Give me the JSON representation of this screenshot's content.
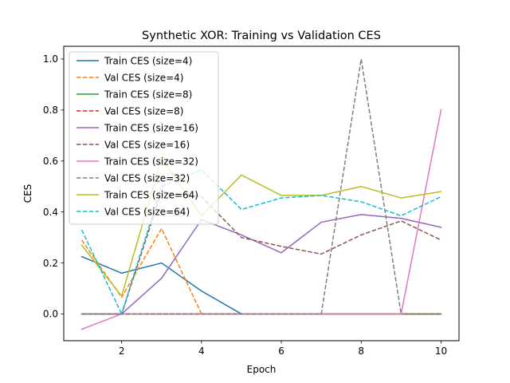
{
  "chart_data": {
    "type": "line",
    "title": "Synthetic XOR: Training vs Validation CES",
    "xlabel": "Epoch",
    "ylabel": "CES",
    "xlim": [
      0.55,
      10.45
    ],
    "ylim": [
      -0.105,
      1.05
    ],
    "xticks": [
      2,
      4,
      6,
      8,
      10
    ],
    "yticks": [
      0.0,
      0.2,
      0.4,
      0.6,
      0.8,
      1.0
    ],
    "ytick_labels": [
      "0.0",
      "0.2",
      "0.4",
      "0.6",
      "0.8",
      "1.0"
    ],
    "grid": false,
    "legend_position": "upper-left",
    "x": [
      1,
      2,
      3,
      4,
      5,
      6,
      7,
      8,
      9,
      10
    ],
    "series": [
      {
        "name": "Train CES (size=4)",
        "color": "#1f77b4",
        "dash": "solid",
        "values": [
          0.225,
          0.16,
          0.2,
          0.09,
          0.0,
          0.0,
          0.0,
          0.0,
          0.0,
          0.0
        ]
      },
      {
        "name": "Val CES (size=4)",
        "color": "#ff7f0e",
        "dash": "dashed",
        "values": [
          0.29,
          0.065,
          0.335,
          0.0,
          0.0,
          0.0,
          0.0,
          0.0,
          0.0,
          0.0
        ]
      },
      {
        "name": "Train CES (size=8)",
        "color": "#2ca02c",
        "dash": "solid",
        "values": [
          0.0,
          0.0,
          0.0,
          0.0,
          0.0,
          0.0,
          0.0,
          0.0,
          0.0,
          0.0
        ]
      },
      {
        "name": "Val CES (size=8)",
        "color": "#d62728",
        "dash": "dashed",
        "values": [
          0.0,
          0.0,
          0.0,
          0.0,
          0.0,
          0.0,
          0.0,
          0.0,
          0.0,
          0.0
        ]
      },
      {
        "name": "Train CES (size=16)",
        "color": "#9467bd",
        "dash": "solid",
        "values": [
          0.0,
          0.0,
          0.14,
          0.37,
          0.31,
          0.24,
          0.36,
          0.39,
          0.375,
          0.34
        ]
      },
      {
        "name": "Val CES (size=16)",
        "color": "#8c564b",
        "dash": "dashed",
        "values": [
          0.0,
          0.0,
          0.48,
          0.46,
          0.3,
          0.265,
          0.235,
          0.31,
          0.365,
          0.29
        ]
      },
      {
        "name": "Train CES (size=32)",
        "color": "#e377c2",
        "dash": "solid",
        "values": [
          -0.06,
          0.0,
          0.0,
          0.0,
          0.0,
          0.0,
          0.0,
          0.0,
          0.0,
          0.8
        ]
      },
      {
        "name": "Val CES (size=32)",
        "color": "#7f7f7f",
        "dash": "dashed",
        "values": [
          0.0,
          0.0,
          0.0,
          0.0,
          0.0,
          0.0,
          0.0,
          1.0,
          0.0,
          0.0
        ]
      },
      {
        "name": "Train CES (size=64)",
        "color": "#bcbd22",
        "dash": "solid",
        "values": [
          0.27,
          0.07,
          0.61,
          0.385,
          0.545,
          0.465,
          0.465,
          0.5,
          0.455,
          0.48
        ]
      },
      {
        "name": "Val CES (size=64)",
        "color": "#17becf",
        "dash": "dashed",
        "values": [
          0.33,
          0.0,
          0.5,
          0.565,
          0.41,
          0.455,
          0.465,
          0.44,
          0.385,
          0.46
        ]
      }
    ]
  }
}
